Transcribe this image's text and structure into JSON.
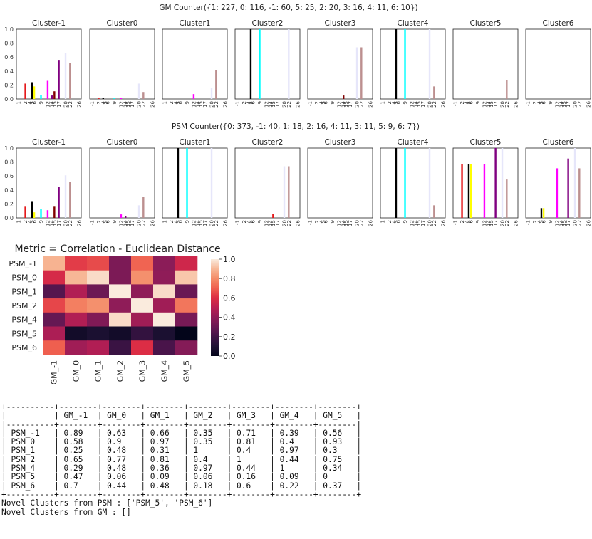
{
  "cluster_ticks": [
    "-1",
    "2",
    "4",
    "5",
    "6",
    "9",
    "12",
    "14",
    "15",
    "17",
    "20",
    "22",
    "26"
  ],
  "cluster_colors": [
    "#e41a1c",
    "#000000",
    "#ffff00",
    "#00ffff",
    "#ff00ff",
    "#800080",
    "#800000",
    "#cccccc",
    "#e6e6fa",
    "#bc8f8f"
  ],
  "chart_data": [
    {
      "type": "bar",
      "title": "GM Counter({1: 227, 0: 116, -1: 60, 5: 25, 2: 20, 3: 16, 4: 11, 6: 10})",
      "ylim": [
        0,
        1.0
      ],
      "yticks": [
        "0.0",
        "0.2",
        "0.4",
        "0.6",
        "0.8",
        "1.0"
      ],
      "panels": [
        {
          "title": "Cluster-1",
          "bars": [
            {
              "x": 2,
              "v": 0.22,
              "c": 0
            },
            {
              "x": 5,
              "v": 0.24,
              "c": 1
            },
            {
              "x": 6,
              "v": 0.18,
              "c": 2
            },
            {
              "x": 9,
              "v": 0.06,
              "c": 3
            },
            {
              "x": 12,
              "v": 0.26,
              "c": 4
            },
            {
              "x": 14,
              "v": 0.05,
              "c": 5
            },
            {
              "x": 15,
              "v": 0.11,
              "c": 6
            },
            {
              "x": 17,
              "v": 0.56,
              "c": 5
            },
            {
              "x": 20,
              "v": 0.66,
              "c": 8
            },
            {
              "x": 22,
              "v": 0.52,
              "c": 9
            }
          ]
        },
        {
          "title": "Cluster0",
          "bars": [
            {
              "x": 2,
              "v": 0.01,
              "c": 0
            },
            {
              "x": 4,
              "v": 0.02,
              "c": 1
            },
            {
              "x": 9,
              "v": 0.01,
              "c": 3
            },
            {
              "x": 12,
              "v": 0.01,
              "c": 4
            },
            {
              "x": 20,
              "v": 0.22,
              "c": 8
            },
            {
              "x": 22,
              "v": 0.1,
              "c": 9
            }
          ]
        },
        {
          "title": "Cluster1",
          "bars": [
            {
              "x": 12,
              "v": 0.07,
              "c": 4
            },
            {
              "x": 20,
              "v": 0.16,
              "c": 8
            },
            {
              "x": 22,
              "v": 0.41,
              "c": 9
            }
          ]
        },
        {
          "title": "Cluster2",
          "bars": [
            {
              "x": 5,
              "v": 1.0,
              "c": 1
            },
            {
              "x": 9,
              "v": 1.0,
              "c": 3
            },
            {
              "x": 22,
              "v": 1.0,
              "c": 8
            }
          ]
        },
        {
          "title": "Cluster3",
          "bars": [
            {
              "x": 14,
              "v": 0.05,
              "c": 6
            },
            {
              "x": 20,
              "v": 0.74,
              "c": 8
            },
            {
              "x": 22,
              "v": 0.74,
              "c": 9
            }
          ]
        },
        {
          "title": "Cluster4",
          "bars": [
            {
              "x": 5,
              "v": 1.0,
              "c": 1
            },
            {
              "x": 9,
              "v": 1.0,
              "c": 3
            },
            {
              "x": 20,
              "v": 1.0,
              "c": 8
            },
            {
              "x": 22,
              "v": 0.18,
              "c": 9
            }
          ]
        },
        {
          "title": "Cluster5",
          "bars": [
            {
              "x": 22,
              "v": 0.27,
              "c": 9
            }
          ]
        },
        {
          "title": "Cluster6",
          "bars": []
        }
      ]
    },
    {
      "type": "bar",
      "title": "PSM Counter({0: 373, -1: 40, 1: 18, 2: 16, 4: 11, 3: 11, 5: 9, 6: 7})",
      "ylim": [
        0,
        1.0
      ],
      "yticks": [
        "0.0",
        "0.2",
        "0.4",
        "0.6",
        "0.8",
        "1.0"
      ],
      "panels": [
        {
          "title": "Cluster-1",
          "bars": [
            {
              "x": 2,
              "v": 0.16,
              "c": 0
            },
            {
              "x": 5,
              "v": 0.24,
              "c": 1
            },
            {
              "x": 6,
              "v": 0.08,
              "c": 2
            },
            {
              "x": 9,
              "v": 0.13,
              "c": 3
            },
            {
              "x": 12,
              "v": 0.11,
              "c": 4
            },
            {
              "x": 15,
              "v": 0.16,
              "c": 6
            },
            {
              "x": 17,
              "v": 0.44,
              "c": 5
            },
            {
              "x": 20,
              "v": 0.61,
              "c": 8
            },
            {
              "x": 22,
              "v": 0.52,
              "c": 9
            }
          ]
        },
        {
          "title": "Cluster0",
          "bars": [
            {
              "x": 12,
              "v": 0.05,
              "c": 4
            },
            {
              "x": 14,
              "v": 0.03,
              "c": 5
            },
            {
              "x": 20,
              "v": 0.18,
              "c": 8
            },
            {
              "x": 22,
              "v": 0.3,
              "c": 9
            }
          ]
        },
        {
          "title": "Cluster1",
          "bars": [
            {
              "x": 5,
              "v": 1.0,
              "c": 1
            },
            {
              "x": 9,
              "v": 1.0,
              "c": 3
            },
            {
              "x": 20,
              "v": 1.0,
              "c": 8
            }
          ]
        },
        {
          "title": "Cluster2",
          "bars": [
            {
              "x": 15,
              "v": 0.06,
              "c": 0
            },
            {
              "x": 20,
              "v": 0.74,
              "c": 8
            },
            {
              "x": 22,
              "v": 0.74,
              "c": 9
            }
          ]
        },
        {
          "title": "Cluster3",
          "bars": []
        },
        {
          "title": "Cluster4",
          "bars": [
            {
              "x": 5,
              "v": 1.0,
              "c": 1
            },
            {
              "x": 9,
              "v": 1.0,
              "c": 3
            },
            {
              "x": 20,
              "v": 1.0,
              "c": 8
            },
            {
              "x": 22,
              "v": 0.18,
              "c": 9
            }
          ]
        },
        {
          "title": "Cluster5",
          "bars": [
            {
              "x": 2,
              "v": 0.77,
              "c": 0
            },
            {
              "x": 5,
              "v": 0.77,
              "c": 1
            },
            {
              "x": 6,
              "v": 0.77,
              "c": 2
            },
            {
              "x": 12,
              "v": 0.77,
              "c": 4
            },
            {
              "x": 17,
              "v": 1.0,
              "c": 5
            },
            {
              "x": 20,
              "v": 1.0,
              "c": 8
            },
            {
              "x": 22,
              "v": 0.55,
              "c": 9
            }
          ]
        },
        {
          "title": "Cluster6",
          "bars": [
            {
              "x": 5,
              "v": 0.14,
              "c": 1
            },
            {
              "x": 6,
              "v": 0.14,
              "c": 2
            },
            {
              "x": 12,
              "v": 0.71,
              "c": 4
            },
            {
              "x": 17,
              "v": 0.85,
              "c": 5
            },
            {
              "x": 20,
              "v": 1.0,
              "c": 8
            },
            {
              "x": 22,
              "v": 0.71,
              "c": 9
            }
          ]
        }
      ]
    },
    {
      "type": "heatmap",
      "title": "Metric = Correlation - Euclidean Distance",
      "rows": [
        "PSM_-1",
        "PSM_0",
        "PSM_1",
        "PSM_2",
        "PSM_4",
        "PSM_5",
        "PSM_6"
      ],
      "cols": [
        "GM_-1",
        "GM_0",
        "GM_1",
        "GM_2",
        "GM_3",
        "GM_4",
        "GM_5"
      ],
      "values": [
        [
          0.89,
          0.63,
          0.66,
          0.35,
          0.71,
          0.39,
          0.56
        ],
        [
          0.58,
          0.9,
          0.97,
          0.35,
          0.81,
          0.4,
          0.93
        ],
        [
          0.25,
          0.48,
          0.31,
          1,
          0.4,
          0.97,
          0.3
        ],
        [
          0.65,
          0.77,
          0.81,
          0.4,
          1,
          0.44,
          0.75
        ],
        [
          0.29,
          0.48,
          0.36,
          0.97,
          0.44,
          1,
          0.34
        ],
        [
          0.47,
          0.06,
          0.09,
          0.06,
          0.16,
          0.09,
          0
        ],
        [
          0.7,
          0.44,
          0.48,
          0.18,
          0.6,
          0.22,
          0.37
        ]
      ],
      "colorbar_ticks": [
        "0.0",
        "0.2",
        "0.4",
        "0.6",
        "0.8",
        "1.0"
      ],
      "vmin": 0,
      "vmax": 1
    }
  ],
  "table": {
    "header": [
      "",
      "GM_-1",
      "GM_0",
      "GM_1",
      "GM_2",
      "GM_3",
      "GM_4",
      "GM_5"
    ],
    "rows": [
      [
        "PSM_-1",
        "0.89",
        "0.63",
        "0.66",
        "0.35",
        "0.71",
        "0.39",
        "0.56"
      ],
      [
        "PSM_0",
        "0.58",
        "0.9",
        "0.97",
        "0.35",
        "0.81",
        "0.4",
        "0.93"
      ],
      [
        "PSM_1",
        "0.25",
        "0.48",
        "0.31",
        "1",
        "0.4",
        "0.97",
        "0.3"
      ],
      [
        "PSM_2",
        "0.65",
        "0.77",
        "0.81",
        "0.4",
        "1",
        "0.44",
        "0.75"
      ],
      [
        "PSM_4",
        "0.29",
        "0.48",
        "0.36",
        "0.97",
        "0.44",
        "1",
        "0.34"
      ],
      [
        "PSM_5",
        "0.47",
        "0.06",
        "0.09",
        "0.06",
        "0.16",
        "0.09",
        "0"
      ],
      [
        "PSM_6",
        "0.7",
        "0.44",
        "0.48",
        "0.18",
        "0.6",
        "0.22",
        "0.37"
      ]
    ]
  },
  "novel_psm": "Novel Clusters from PSM : ['PSM_5', 'PSM_6']",
  "novel_gm": "Novel Clusters from GM : []"
}
